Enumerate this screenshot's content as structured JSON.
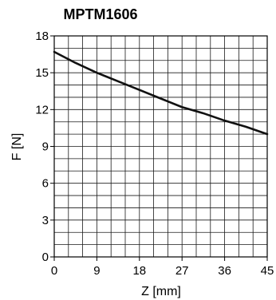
{
  "chart_data": {
    "type": "line",
    "title": "MPTM1606",
    "xlabel": "Z [mm]",
    "ylabel": "F [N]",
    "xlim": [
      0,
      45
    ],
    "ylim": [
      0,
      18
    ],
    "x_ticks": [
      0,
      9,
      18,
      27,
      36,
      45
    ],
    "y_ticks": [
      0,
      3,
      6,
      9,
      12,
      15,
      18
    ],
    "x_minor_step": 3,
    "y_minor_step": 1,
    "grid": true,
    "series": [
      {
        "color": "#111111",
        "points": [
          {
            "x": 0,
            "y": 16.7
          },
          {
            "x": 4.5,
            "y": 15.8
          },
          {
            "x": 9,
            "y": 15.0
          },
          {
            "x": 13.5,
            "y": 14.3
          },
          {
            "x": 18,
            "y": 13.6
          },
          {
            "x": 22.5,
            "y": 12.9
          },
          {
            "x": 27,
            "y": 12.2
          },
          {
            "x": 31.5,
            "y": 11.7
          },
          {
            "x": 36,
            "y": 11.1
          },
          {
            "x": 40.5,
            "y": 10.6
          },
          {
            "x": 45,
            "y": 10.0
          }
        ]
      }
    ]
  }
}
